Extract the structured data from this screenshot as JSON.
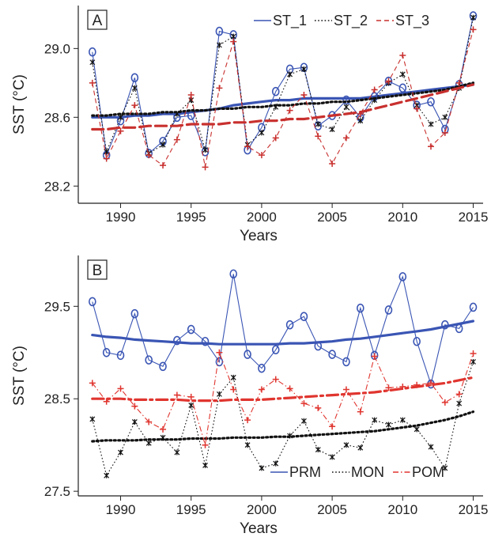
{
  "chart_data": [
    {
      "panel_label": "A",
      "type": "line",
      "xlabel": "Years",
      "ylabel": "SST (°C)",
      "xlim": [
        1987,
        2015.7
      ],
      "ylim": [
        28.1,
        29.25
      ],
      "xticks": [
        1990,
        1995,
        2000,
        2005,
        2010,
        2015
      ],
      "yticks": [
        28.2,
        28.6,
        29.0
      ],
      "ytick_labels": [
        "28.2",
        "28.6",
        "29.0"
      ],
      "legend_position": "top",
      "x": [
        1988,
        1989,
        1990,
        1991,
        1992,
        1993,
        1994,
        1995,
        1996,
        1997,
        1998,
        1999,
        2000,
        2001,
        2002,
        2003,
        2004,
        2005,
        2006,
        2007,
        2008,
        2009,
        2010,
        2011,
        2012,
        2013,
        2014,
        2015
      ],
      "series": [
        {
          "name": "ST_1",
          "color": "#3a55b4",
          "dash": "solid",
          "marker": "circle",
          "values": [
            28.98,
            28.38,
            28.58,
            28.83,
            28.39,
            28.46,
            28.6,
            28.61,
            28.4,
            29.1,
            29.08,
            28.41,
            28.54,
            28.75,
            28.88,
            28.89,
            28.55,
            28.61,
            28.7,
            28.6,
            28.72,
            28.81,
            28.77,
            28.67,
            28.69,
            28.53,
            28.79,
            29.19
          ],
          "trend": [
            28.6,
            28.6,
            28.6,
            28.61,
            28.61,
            28.62,
            28.62,
            28.63,
            28.64,
            28.65,
            28.67,
            28.68,
            28.69,
            28.7,
            28.7,
            28.71,
            28.71,
            28.71,
            28.71,
            28.71,
            28.72,
            28.73,
            28.74,
            28.75,
            28.76,
            28.77,
            28.78,
            28.79
          ]
        },
        {
          "name": "ST_2",
          "color": "#111111",
          "dash": "dotted",
          "marker": "star",
          "values": [
            28.92,
            28.4,
            28.6,
            28.77,
            28.39,
            28.44,
            28.62,
            28.7,
            28.41,
            29.02,
            29.07,
            28.44,
            28.51,
            28.66,
            28.85,
            28.88,
            28.56,
            28.53,
            28.66,
            28.58,
            28.7,
            28.8,
            28.85,
            28.67,
            28.56,
            28.6,
            28.77,
            29.18
          ],
          "trend": [
            28.61,
            28.61,
            28.62,
            28.62,
            28.62,
            28.63,
            28.63,
            28.64,
            28.64,
            28.65,
            28.65,
            28.66,
            28.66,
            28.67,
            28.67,
            28.68,
            28.68,
            28.69,
            28.69,
            28.7,
            28.71,
            28.72,
            28.73,
            28.74,
            28.75,
            28.76,
            28.78,
            28.8
          ]
        },
        {
          "name": "ST_3",
          "color": "#c8302e",
          "dash": "dashed",
          "marker": "plus",
          "values": [
            28.8,
            28.36,
            28.52,
            28.67,
            28.38,
            28.32,
            28.47,
            28.73,
            28.31,
            28.77,
            29.04,
            28.43,
            28.38,
            28.48,
            28.64,
            28.73,
            28.49,
            28.33,
            28.48,
            28.62,
            28.76,
            28.81,
            28.96,
            28.65,
            28.43,
            28.51,
            28.8,
            29.11
          ],
          "trend": [
            28.53,
            28.53,
            28.54,
            28.54,
            28.55,
            28.55,
            28.55,
            28.56,
            28.56,
            28.56,
            28.57,
            28.57,
            28.58,
            28.58,
            28.59,
            28.59,
            28.6,
            28.61,
            28.62,
            28.63,
            28.65,
            28.67,
            28.69,
            28.71,
            28.73,
            28.75,
            28.77,
            28.79
          ]
        }
      ]
    },
    {
      "panel_label": "B",
      "type": "line",
      "xlabel": "Years",
      "ylabel": "SST (°C)",
      "xlim": [
        1987,
        2015.7
      ],
      "ylim": [
        27.45,
        30.05
      ],
      "xticks": [
        1990,
        1995,
        2000,
        2005,
        2010,
        2015
      ],
      "yticks": [
        27.5,
        28.5,
        29.5
      ],
      "ytick_labels": [
        "27.5",
        "28.5",
        "29.5"
      ],
      "legend_position": "bottom-right",
      "x": [
        1988,
        1989,
        1990,
        1991,
        1992,
        1993,
        1994,
        1995,
        1996,
        1997,
        1998,
        1999,
        2000,
        2001,
        2002,
        2003,
        2004,
        2005,
        2006,
        2007,
        2008,
        2009,
        2010,
        2011,
        2012,
        2013,
        2014,
        2015
      ],
      "series": [
        {
          "name": "PRM",
          "color": "#3a55b4",
          "dash": "solid",
          "marker": "circle",
          "values": [
            29.55,
            29.0,
            28.97,
            29.42,
            28.92,
            28.85,
            29.13,
            29.25,
            29.12,
            28.9,
            29.85,
            28.98,
            28.83,
            29.03,
            29.3,
            29.39,
            29.07,
            28.98,
            28.9,
            29.48,
            28.97,
            29.46,
            29.82,
            29.12,
            28.66,
            29.3,
            29.26,
            29.49
          ],
          "trend": [
            29.19,
            29.17,
            29.16,
            29.14,
            29.13,
            29.12,
            29.11,
            29.1,
            29.1,
            29.09,
            29.09,
            29.09,
            29.09,
            29.09,
            29.1,
            29.1,
            29.11,
            29.12,
            29.14,
            29.15,
            29.17,
            29.19,
            29.21,
            29.23,
            29.25,
            29.28,
            29.31,
            29.34
          ]
        },
        {
          "name": "MON",
          "color": "#111111",
          "dash": "dotted",
          "marker": "star",
          "values": [
            28.28,
            27.67,
            27.92,
            28.25,
            28.02,
            28.08,
            27.92,
            28.43,
            27.78,
            28.55,
            28.73,
            28.0,
            27.75,
            27.8,
            28.1,
            28.26,
            27.95,
            27.87,
            28.0,
            27.97,
            28.27,
            28.22,
            28.27,
            28.17,
            27.98,
            27.75,
            28.45,
            28.9
          ],
          "trend": [
            28.04,
            28.05,
            28.05,
            28.05,
            28.06,
            28.06,
            28.06,
            28.07,
            28.07,
            28.07,
            28.08,
            28.08,
            28.08,
            28.09,
            28.09,
            28.1,
            28.11,
            28.12,
            28.13,
            28.14,
            28.15,
            28.17,
            28.19,
            28.21,
            28.24,
            28.27,
            28.31,
            28.36
          ]
        },
        {
          "name": "POM",
          "color": "#e0352f",
          "dash": "dashdot",
          "marker": "plus",
          "values": [
            28.67,
            28.47,
            28.61,
            28.42,
            28.25,
            28.17,
            28.54,
            28.52,
            28.0,
            29.0,
            28.6,
            28.27,
            28.6,
            28.71,
            28.61,
            28.45,
            28.4,
            28.2,
            28.6,
            28.36,
            28.96,
            28.62,
            28.63,
            28.65,
            28.67,
            28.46,
            28.55,
            28.99
          ],
          "trend": [
            28.5,
            28.5,
            28.5,
            28.49,
            28.49,
            28.49,
            28.49,
            28.48,
            28.48,
            28.48,
            28.49,
            28.49,
            28.49,
            28.5,
            28.51,
            28.52,
            28.53,
            28.54,
            28.55,
            28.56,
            28.57,
            28.59,
            28.61,
            28.63,
            28.65,
            28.67,
            28.7,
            28.73
          ]
        }
      ]
    }
  ]
}
